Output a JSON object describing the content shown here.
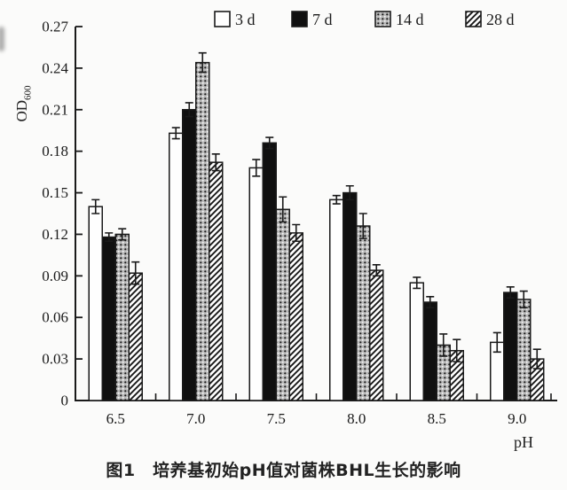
{
  "figure": {
    "caption": "图1　培养基初始pH值对菌株BHL生长的影响",
    "y_axis_label_main": "OD",
    "y_axis_label_sub": "600",
    "x_axis_label": "pH"
  },
  "chart_data": {
    "type": "bar",
    "title": "",
    "xlabel": "pH",
    "ylabel": "OD600",
    "ylim": [
      0,
      0.27
    ],
    "ytick_labels": [
      "0",
      "0.03",
      "0.06",
      "0.09",
      "0.12",
      "0.15",
      "0.18",
      "0.21",
      "0.24",
      "0.27"
    ],
    "categories": [
      "6.5",
      "7.0",
      "7.5",
      "8.0",
      "8.5",
      "9.0"
    ],
    "series": [
      {
        "name": "3 d",
        "pattern": "open",
        "values": [
          0.14,
          0.193,
          0.168,
          0.145,
          0.085,
          0.042
        ],
        "errors": [
          0.005,
          0.004,
          0.006,
          0.003,
          0.004,
          0.007
        ]
      },
      {
        "name": "7 d",
        "pattern": "solid",
        "values": [
          0.118,
          0.21,
          0.186,
          0.15,
          0.071,
          0.078
        ],
        "errors": [
          0.003,
          0.005,
          0.004,
          0.005,
          0.004,
          0.004
        ]
      },
      {
        "name": "14 d",
        "pattern": "stipple",
        "values": [
          0.12,
          0.244,
          0.138,
          0.126,
          0.04,
          0.073
        ],
        "errors": [
          0.004,
          0.007,
          0.009,
          0.009,
          0.008,
          0.006
        ]
      },
      {
        "name": "28 d",
        "pattern": "hatch",
        "values": [
          0.092,
          0.172,
          0.121,
          0.094,
          0.036,
          0.03
        ],
        "errors": [
          0.008,
          0.006,
          0.006,
          0.004,
          0.008,
          0.007
        ]
      }
    ],
    "error_bars": true,
    "grid": false,
    "legend_position": "top-inside",
    "colors": {
      "ink": "#1a1a1a",
      "open_fill": "#fefefe",
      "solid_fill": "#101010",
      "stipple_base": "#b9b9b9",
      "hatch_base": "#ffffff"
    }
  }
}
